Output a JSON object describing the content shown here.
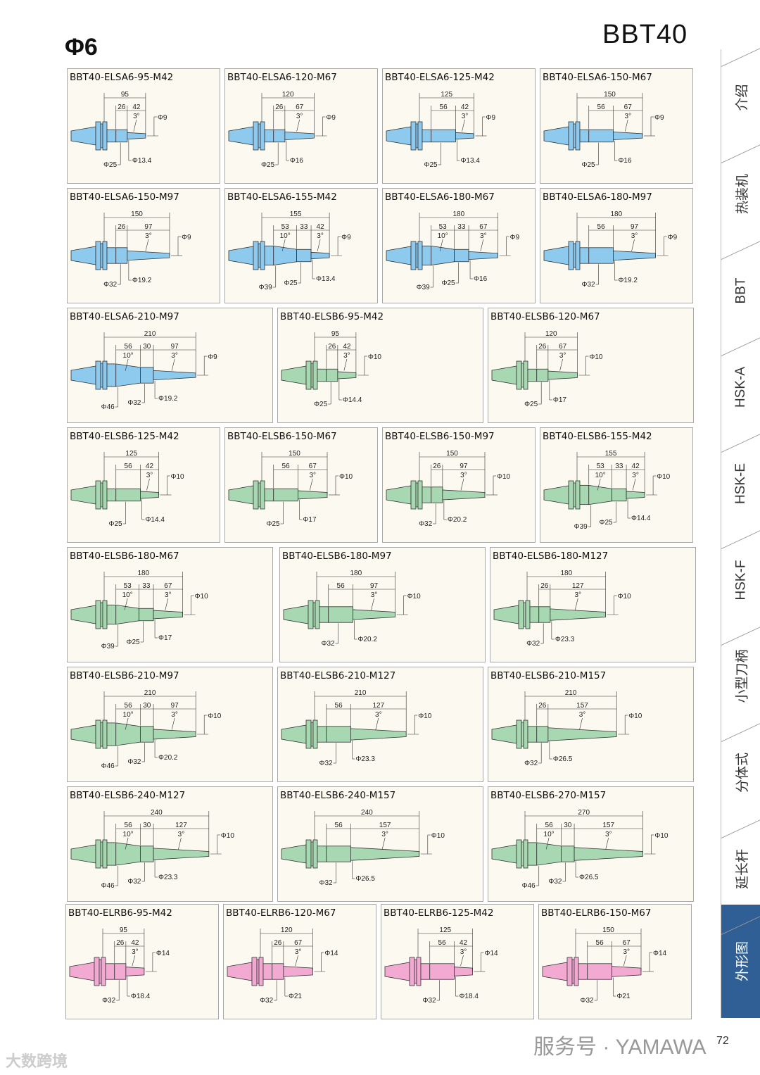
{
  "header": {
    "phi": "Φ6",
    "model": "BBT40"
  },
  "colors": {
    "A": "#8ec9ee",
    "B": "#a7d8b1",
    "R": "#f2a9d2",
    "stroke": "#333333",
    "accent": "#2f5f94"
  },
  "cards": [
    {
      "title": "BBT40-ELSA6-95-M42",
      "s": "A",
      "total": "95",
      "segs": [
        "26",
        "42"
      ],
      "angles": [
        "3°"
      ],
      "tip": "Φ9",
      "diams": [
        "Φ25",
        "Φ13.4"
      ]
    },
    {
      "title": "BBT40-ELSA6-120-M67",
      "s": "A",
      "total": "120",
      "segs": [
        "26",
        "67"
      ],
      "angles": [
        "3°"
      ],
      "tip": "Φ9",
      "diams": [
        "Φ25",
        "Φ16"
      ]
    },
    {
      "title": "BBT40-ELSA6-125-M42",
      "s": "A",
      "total": "125",
      "segs": [
        "56",
        "42"
      ],
      "angles": [
        "3°"
      ],
      "tip": "Φ9",
      "diams": [
        "Φ25",
        "Φ13.4"
      ]
    },
    {
      "title": "BBT40-ELSA6-150-M67",
      "s": "A",
      "total": "150",
      "segs": [
        "56",
        "67"
      ],
      "angles": [
        "3°"
      ],
      "tip": "Φ9",
      "diams": [
        "Φ25",
        "Φ16"
      ]
    },
    {
      "title": "BBT40-ELSA6-150-M97",
      "s": "A",
      "total": "150",
      "segs": [
        "26",
        "97"
      ],
      "angles": [
        "3°"
      ],
      "tip": "Φ9",
      "diams": [
        "Φ32",
        "Φ19.2"
      ]
    },
    {
      "title": "BBT40-ELSA6-155-M42",
      "s": "A",
      "total": "155",
      "segs": [
        "53",
        "33",
        "42"
      ],
      "angles": [
        "10°",
        "3°"
      ],
      "tip": "Φ9",
      "diams": [
        "Φ39",
        "Φ25",
        "Φ13.4"
      ]
    },
    {
      "title": "BBT40-ELSA6-180-M67",
      "s": "A",
      "total": "180",
      "segs": [
        "53",
        "33",
        "67"
      ],
      "angles": [
        "10°",
        "3°"
      ],
      "tip": "Φ9",
      "diams": [
        "Φ39",
        "Φ25",
        "Φ16"
      ]
    },
    {
      "title": "BBT40-ELSA6-180-M97",
      "s": "A",
      "total": "180",
      "segs": [
        "56",
        "97"
      ],
      "angles": [
        "3°"
      ],
      "tip": "Φ9",
      "diams": [
        "Φ32",
        "Φ19.2"
      ]
    },
    {
      "title": "BBT40-ELSA6-210-M97",
      "s": "A",
      "total": "210",
      "segs": [
        "56",
        "30",
        "97"
      ],
      "angles": [
        "10°",
        "3°"
      ],
      "tip": "Φ9",
      "diams": [
        "Φ46",
        "Φ32",
        "Φ19.2"
      ]
    },
    {
      "title": "BBT40-ELSB6-95-M42",
      "s": "B",
      "total": "95",
      "segs": [
        "26",
        "42"
      ],
      "angles": [
        "3°"
      ],
      "tip": "Φ10",
      "diams": [
        "Φ25",
        "Φ14.4"
      ]
    },
    {
      "title": "BBT40-ELSB6-120-M67",
      "s": "B",
      "total": "120",
      "segs": [
        "26",
        "67"
      ],
      "angles": [
        "3°"
      ],
      "tip": "Φ10",
      "diams": [
        "Φ25",
        "Φ17"
      ]
    },
    {
      "title": "BBT40-ELSB6-125-M42",
      "s": "B",
      "total": "125",
      "segs": [
        "56",
        "42"
      ],
      "angles": [
        "3°"
      ],
      "tip": "Φ10",
      "diams": [
        "Φ25",
        "Φ14.4"
      ]
    },
    {
      "title": "BBT40-ELSB6-150-M67",
      "s": "B",
      "total": "150",
      "segs": [
        "56",
        "67"
      ],
      "angles": [
        "3°"
      ],
      "tip": "Φ10",
      "diams": [
        "Φ25",
        "Φ17"
      ]
    },
    {
      "title": "BBT40-ELSB6-150-M97",
      "s": "B",
      "total": "150",
      "segs": [
        "26",
        "97"
      ],
      "angles": [
        "3°"
      ],
      "tip": "Φ10",
      "diams": [
        "Φ32",
        "Φ20.2"
      ]
    },
    {
      "title": "BBT40-ELSB6-155-M42",
      "s": "B",
      "total": "155",
      "segs": [
        "53",
        "33",
        "42"
      ],
      "angles": [
        "10°",
        "3°"
      ],
      "tip": "Φ10",
      "diams": [
        "Φ39",
        "Φ25",
        "Φ14.4"
      ]
    },
    {
      "title": "BBT40-ELSB6-180-M67",
      "s": "B",
      "total": "180",
      "segs": [
        "53",
        "33",
        "67"
      ],
      "angles": [
        "10°",
        "3°"
      ],
      "tip": "Φ10",
      "diams": [
        "Φ39",
        "Φ25",
        "Φ17"
      ]
    },
    {
      "title": "BBT40-ELSB6-180-M97",
      "s": "B",
      "total": "180",
      "segs": [
        "56",
        "97"
      ],
      "angles": [
        "3°"
      ],
      "tip": "Φ10",
      "diams": [
        "Φ32",
        "Φ20.2"
      ]
    },
    {
      "title": "BBT40-ELSB6-180-M127",
      "s": "B",
      "total": "180",
      "segs": [
        "26",
        "127"
      ],
      "angles": [
        "3°"
      ],
      "tip": "Φ10",
      "diams": [
        "Φ32",
        "Φ23.3"
      ]
    },
    {
      "title": "BBT40-ELSB6-210-M97",
      "s": "B",
      "total": "210",
      "segs": [
        "56",
        "30",
        "97"
      ],
      "angles": [
        "10°",
        "3°"
      ],
      "tip": "Φ10",
      "diams": [
        "Φ46",
        "Φ32",
        "Φ20.2"
      ]
    },
    {
      "title": "BBT40-ELSB6-210-M127",
      "s": "B",
      "total": "210",
      "segs": [
        "56",
        "127"
      ],
      "angles": [
        "3°"
      ],
      "tip": "Φ10",
      "diams": [
        "Φ32",
        "Φ23.3"
      ]
    },
    {
      "title": "BBT40-ELSB6-210-M157",
      "s": "B",
      "total": "210",
      "segs": [
        "26",
        "157"
      ],
      "angles": [
        "3°"
      ],
      "tip": "Φ10",
      "diams": [
        "Φ32",
        "Φ26.5"
      ]
    },
    {
      "title": "BBT40-ELSB6-240-M127",
      "s": "B",
      "total": "240",
      "segs": [
        "56",
        "30",
        "127"
      ],
      "angles": [
        "10°",
        "3°"
      ],
      "tip": "Φ10",
      "diams": [
        "Φ46",
        "Φ32",
        "Φ23.3"
      ]
    },
    {
      "title": "BBT40-ELSB6-240-M157",
      "s": "B",
      "total": "240",
      "segs": [
        "56",
        "157"
      ],
      "angles": [
        "3°"
      ],
      "tip": "Φ10",
      "diams": [
        "Φ32",
        "Φ26.5"
      ]
    },
    {
      "title": "BBT40-ELSB6-270-M157",
      "s": "B",
      "total": "270",
      "segs": [
        "56",
        "30",
        "157"
      ],
      "angles": [
        "10°",
        "3°"
      ],
      "tip": "Φ10",
      "diams": [
        "Φ46",
        "Φ32",
        "Φ26.5"
      ]
    },
    {
      "title": "BBT40-ELRB6-95-M42",
      "s": "R",
      "total": "95",
      "segs": [
        "26",
        "42"
      ],
      "angles": [
        "3°"
      ],
      "tip": "Φ14",
      "diams": [
        "Φ32",
        "Φ18.4"
      ]
    },
    {
      "title": "BBT40-ELRB6-120-M67",
      "s": "R",
      "total": "120",
      "segs": [
        "26",
        "67"
      ],
      "angles": [
        "3°"
      ],
      "tip": "Φ14",
      "diams": [
        "Φ32",
        "Φ21"
      ]
    },
    {
      "title": "BBT40-ELRB6-125-M42",
      "s": "R",
      "total": "125",
      "segs": [
        "56",
        "42"
      ],
      "angles": [
        "3°"
      ],
      "tip": "Φ14",
      "diams": [
        "Φ32",
        "Φ18.4"
      ]
    },
    {
      "title": "BBT40-ELRB6-150-M67",
      "s": "R",
      "total": "150",
      "segs": [
        "56",
        "67"
      ],
      "angles": [
        "3°"
      ],
      "tip": "Φ14",
      "diams": [
        "Φ32",
        "Φ21"
      ]
    }
  ],
  "sidebar": {
    "tabs": [
      "介绍",
      "热装机",
      "BBT",
      "HSK-A",
      "HSK-E",
      "HSK-F",
      "小型刀柄",
      "分体式",
      "延长杆",
      "外形图"
    ],
    "active": 9
  },
  "footer": {
    "watermark": "服务号 · YAMAWA",
    "page": "72",
    "corner": "大数跨境"
  }
}
